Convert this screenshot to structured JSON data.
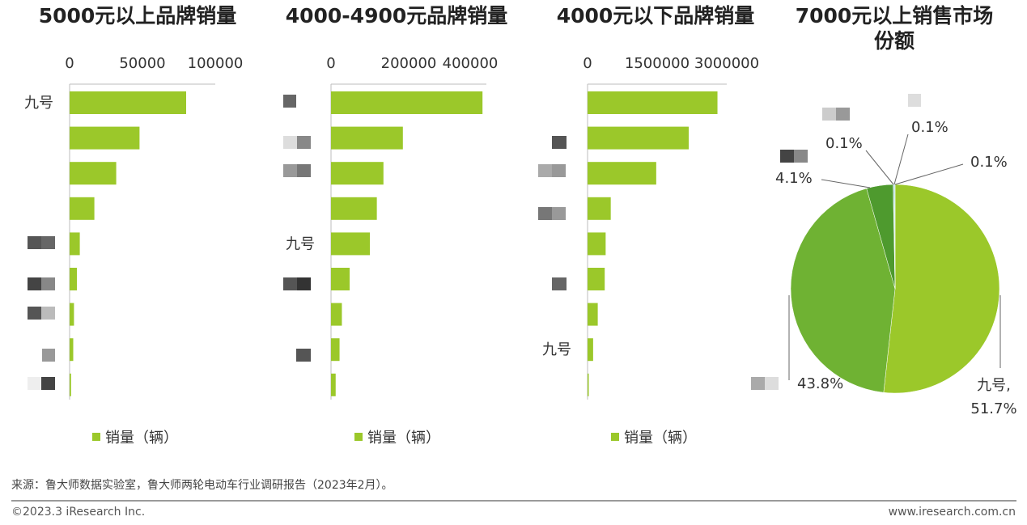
{
  "colors": {
    "bar": "#9bc82a",
    "pie_main": "#9bc82a",
    "pie_second": "#6fb233",
    "pie_third": "#4e9a2e",
    "pie_small": "#3aa0a0",
    "axis": "#bdbdbd"
  },
  "chart_data": [
    {
      "type": "bar",
      "title": "5000元以上品牌销量",
      "categories": [
        "九号",
        "",
        "",
        "",
        "",
        "",
        "",
        "",
        ""
      ],
      "values": [
        80000,
        48000,
        32000,
        17000,
        7000,
        5000,
        3000,
        2500,
        1000
      ],
      "xlim": [
        0,
        100000
      ],
      "xticks": [
        "0",
        "50000",
        "100000"
      ],
      "legend": "销量（辆）",
      "grid": false
    },
    {
      "type": "bar",
      "title": "4000-4900元品牌销量",
      "categories": [
        "",
        "",
        "",
        "",
        "九号",
        "",
        "",
        "",
        ""
      ],
      "values": [
        390000,
        185000,
        135000,
        118000,
        100000,
        48000,
        28000,
        22000,
        12000
      ],
      "xlim": [
        0,
        400000
      ],
      "xticks": [
        "0",
        "200000",
        "400000"
      ],
      "legend": "销量（辆）",
      "grid": false
    },
    {
      "type": "bar",
      "title": "4000元以下品牌销量",
      "categories": [
        "",
        "",
        "",
        "",
        "",
        "",
        "",
        "九号",
        ""
      ],
      "values": [
        2800000,
        2180000,
        1480000,
        500000,
        390000,
        370000,
        220000,
        120000,
        20000
      ],
      "xlim": [
        0,
        3000000
      ],
      "xticks": [
        "0",
        "1500000",
        "3000000"
      ],
      "legend": "销量（辆）",
      "grid": false
    },
    {
      "type": "pie",
      "title": "7000元以上销售市场份额",
      "slices": [
        {
          "label": "九号,",
          "value": 51.7,
          "text": "51.7%"
        },
        {
          "label": "",
          "value": 43.8,
          "text": "43.8%"
        },
        {
          "label": "",
          "value": 4.1,
          "text": "4.1%"
        },
        {
          "label": "",
          "value": 0.1,
          "text": "0.1%"
        },
        {
          "label": "",
          "value": 0.1,
          "text": "0.1%"
        },
        {
          "label": "",
          "value": 0.1,
          "text": "0.1%"
        }
      ]
    }
  ],
  "footer": {
    "source": "来源：鲁大师数据实验室，鲁大师两轮电动车行业调研报告（2023年2月）。",
    "copyright": "©2023.3 iResearch Inc.",
    "url": "www.iresearch.com.cn"
  }
}
